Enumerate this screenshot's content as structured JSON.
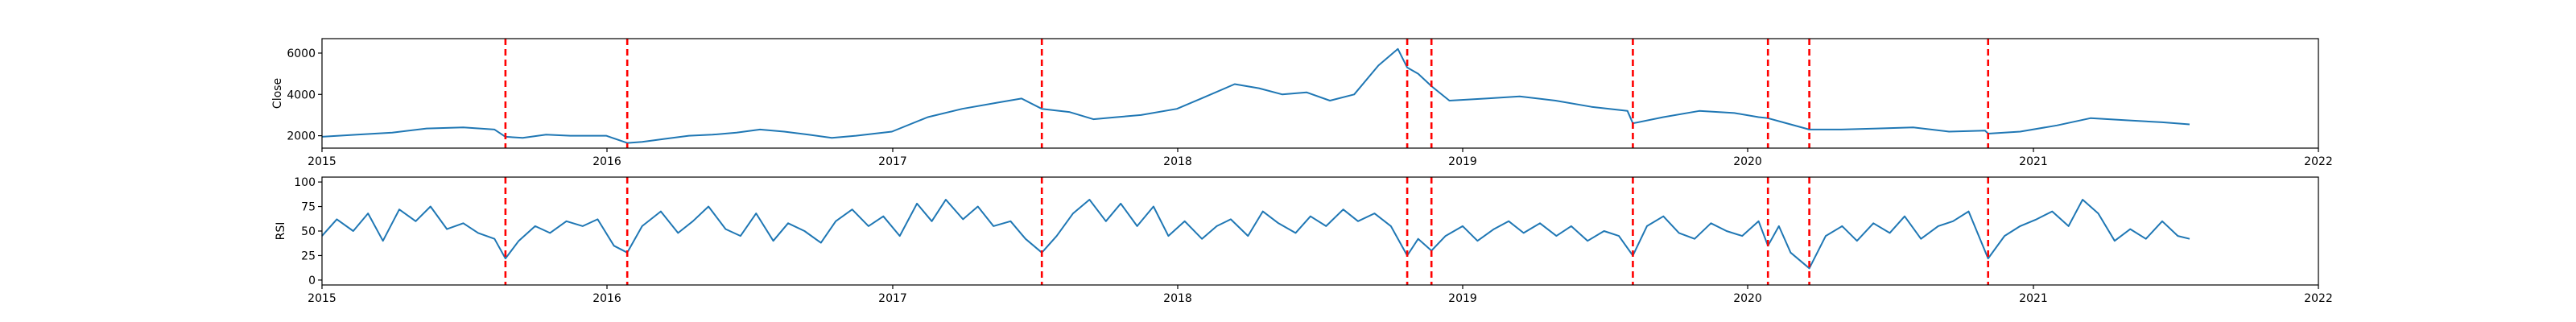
{
  "chart_data": [
    {
      "type": "line",
      "ylabel": "Close",
      "xlabel": "",
      "title": "",
      "ylim": [
        1400,
        6700
      ],
      "xlim": [
        "2015-01-01",
        "2022-01-01"
      ],
      "x_ticks": [
        "2015",
        "2016",
        "2017",
        "2018",
        "2019",
        "2020",
        "2021",
        "2022"
      ],
      "y_ticks": [
        2000,
        4000,
        6000
      ],
      "y_tick_labels": [
        "2000",
        "4000",
        "6000"
      ],
      "grid": false,
      "line_color": "#1f77b4",
      "event_line_color": "#ff0000",
      "event_dates": [
        "2015-08-24",
        "2016-01-27",
        "2017-07-11",
        "2018-10-22",
        "2018-11-22",
        "2019-08-07",
        "2020-01-27",
        "2020-03-20",
        "2020-11-04"
      ],
      "series": [
        {
          "x": [
            "2015-01-01",
            "2015-02-15",
            "2015-04-01",
            "2015-05-15",
            "2015-07-01",
            "2015-08-10",
            "2015-08-24",
            "2015-09-15",
            "2015-10-15",
            "2015-11-15",
            "2015-12-31",
            "2016-01-27",
            "2016-02-15",
            "2016-03-15",
            "2016-04-15",
            "2016-05-15",
            "2016-06-15",
            "2016-07-15",
            "2016-08-15",
            "2016-09-15",
            "2016-10-15",
            "2016-11-15",
            "2016-12-31",
            "2017-02-15",
            "2017-03-31",
            "2017-05-15",
            "2017-06-15",
            "2017-07-11",
            "2017-08-15",
            "2017-09-15",
            "2017-10-15",
            "2017-11-15",
            "2017-12-31",
            "2018-01-31",
            "2018-03-15",
            "2018-04-15",
            "2018-05-15",
            "2018-06-15",
            "2018-07-15",
            "2018-08-15",
            "2018-09-15",
            "2018-10-10",
            "2018-10-22",
            "2018-11-05",
            "2018-11-22",
            "2018-12-15",
            "2019-01-31",
            "2019-03-15",
            "2019-04-30",
            "2019-06-15",
            "2019-07-31",
            "2019-08-07",
            "2019-09-15",
            "2019-10-31",
            "2019-12-15",
            "2020-01-15",
            "2020-01-27",
            "2020-02-15",
            "2020-03-20",
            "2020-04-30",
            "2020-06-15",
            "2020-07-31",
            "2020-09-15",
            "2020-10-31",
            "2020-11-04",
            "2020-12-15",
            "2021-01-31",
            "2021-03-15",
            "2021-04-30",
            "2021-06-15",
            "2021-07-20"
          ],
          "values": [
            1950,
            2050,
            2150,
            2350,
            2400,
            2300,
            1950,
            1900,
            2050,
            2000,
            2000,
            1650,
            1700,
            1850,
            2000,
            2050,
            2150,
            2300,
            2200,
            2050,
            1900,
            2000,
            2200,
            2900,
            3300,
            3600,
            3800,
            3300,
            3150,
            2800,
            2900,
            3000,
            3300,
            3800,
            4500,
            4300,
            4000,
            4100,
            3700,
            4000,
            5400,
            6200,
            5300,
            5000,
            4400,
            3700,
            3800,
            3900,
            3700,
            3400,
            3200,
            2600,
            2900,
            3200,
            3100,
            2900,
            2850,
            2650,
            2300,
            2300,
            2350,
            2400,
            2200,
            2250,
            2100,
            2200,
            2500,
            2850,
            2750,
            2650,
            2550
          ]
        }
      ]
    },
    {
      "type": "line",
      "ylabel": "RSI",
      "xlabel": "",
      "title": "",
      "ylim": [
        -5,
        105
      ],
      "xlim": [
        "2015-01-01",
        "2022-01-01"
      ],
      "x_ticks": [
        "2015",
        "2016",
        "2017",
        "2018",
        "2019",
        "2020",
        "2021",
        "2022"
      ],
      "y_ticks": [
        0,
        25,
        50,
        75,
        100
      ],
      "y_tick_labels": [
        "0",
        "25",
        "50",
        "75",
        "100"
      ],
      "grid": false,
      "line_color": "#1f77b4",
      "event_line_color": "#ff0000",
      "event_dates": [
        "2015-08-24",
        "2016-01-27",
        "2017-07-11",
        "2018-10-22",
        "2018-11-22",
        "2019-08-07",
        "2020-01-27",
        "2020-03-20",
        "2020-11-04"
      ],
      "series": [
        {
          "x": [
            "2015-01-01",
            "2015-01-20",
            "2015-02-10",
            "2015-03-01",
            "2015-03-20",
            "2015-04-10",
            "2015-05-01",
            "2015-05-20",
            "2015-06-10",
            "2015-07-01",
            "2015-07-20",
            "2015-08-10",
            "2015-08-24",
            "2015-09-10",
            "2015-10-01",
            "2015-10-20",
            "2015-11-10",
            "2015-12-01",
            "2015-12-20",
            "2016-01-10",
            "2016-01-27",
            "2016-02-15",
            "2016-03-10",
            "2016-04-01",
            "2016-04-20",
            "2016-05-10",
            "2016-06-01",
            "2016-06-20",
            "2016-07-10",
            "2016-08-01",
            "2016-08-20",
            "2016-09-10",
            "2016-10-01",
            "2016-10-20",
            "2016-11-10",
            "2016-12-01",
            "2016-12-20",
            "2017-01-10",
            "2017-02-01",
            "2017-02-20",
            "2017-03-10",
            "2017-04-01",
            "2017-04-20",
            "2017-05-10",
            "2017-06-01",
            "2017-06-20",
            "2017-07-11",
            "2017-07-30",
            "2017-08-20",
            "2017-09-10",
            "2017-10-01",
            "2017-10-20",
            "2017-11-10",
            "2017-12-01",
            "2017-12-20",
            "2018-01-10",
            "2018-02-01",
            "2018-02-20",
            "2018-03-10",
            "2018-04-01",
            "2018-04-20",
            "2018-05-10",
            "2018-06-01",
            "2018-06-20",
            "2018-07-10",
            "2018-08-01",
            "2018-08-20",
            "2018-09-10",
            "2018-10-01",
            "2018-10-22",
            "2018-11-05",
            "2018-11-22",
            "2018-12-10",
            "2019-01-01",
            "2019-01-20",
            "2019-02-10",
            "2019-03-01",
            "2019-03-20",
            "2019-04-10",
            "2019-05-01",
            "2019-05-20",
            "2019-06-10",
            "2019-07-01",
            "2019-07-20",
            "2019-08-07",
            "2019-08-25",
            "2019-09-15",
            "2019-10-05",
            "2019-10-25",
            "2019-11-15",
            "2019-12-05",
            "2019-12-25",
            "2020-01-15",
            "2020-01-27",
            "2020-02-10",
            "2020-02-25",
            "2020-03-20",
            "2020-04-10",
            "2020-05-01",
            "2020-05-20",
            "2020-06-10",
            "2020-07-01",
            "2020-07-20",
            "2020-08-10",
            "2020-09-01",
            "2020-09-20",
            "2020-10-10",
            "2020-11-04",
            "2020-11-25",
            "2020-12-15",
            "2021-01-05",
            "2021-01-25",
            "2021-02-15",
            "2021-03-05",
            "2021-03-25",
            "2021-04-15",
            "2021-05-05",
            "2021-05-25",
            "2021-06-15",
            "2021-07-05",
            "2021-07-20"
          ],
          "values": [
            45,
            62,
            50,
            68,
            40,
            72,
            60,
            75,
            52,
            58,
            48,
            42,
            22,
            40,
            55,
            48,
            60,
            55,
            62,
            35,
            28,
            55,
            70,
            48,
            60,
            75,
            52,
            45,
            68,
            40,
            58,
            50,
            38,
            60,
            72,
            55,
            65,
            45,
            78,
            60,
            82,
            62,
            75,
            55,
            60,
            42,
            28,
            45,
            68,
            82,
            60,
            78,
            55,
            75,
            45,
            60,
            42,
            55,
            62,
            45,
            70,
            58,
            48,
            65,
            55,
            72,
            60,
            68,
            55,
            25,
            42,
            30,
            45,
            55,
            40,
            52,
            60,
            48,
            58,
            45,
            55,
            40,
            50,
            45,
            25,
            55,
            65,
            48,
            42,
            58,
            50,
            45,
            60,
            35,
            55,
            28,
            12,
            45,
            55,
            40,
            58,
            48,
            65,
            42,
            55,
            60,
            70,
            22,
            45,
            55,
            62,
            70,
            55,
            82,
            68,
            40,
            52,
            42,
            60,
            45,
            42
          ]
        }
      ]
    }
  ]
}
